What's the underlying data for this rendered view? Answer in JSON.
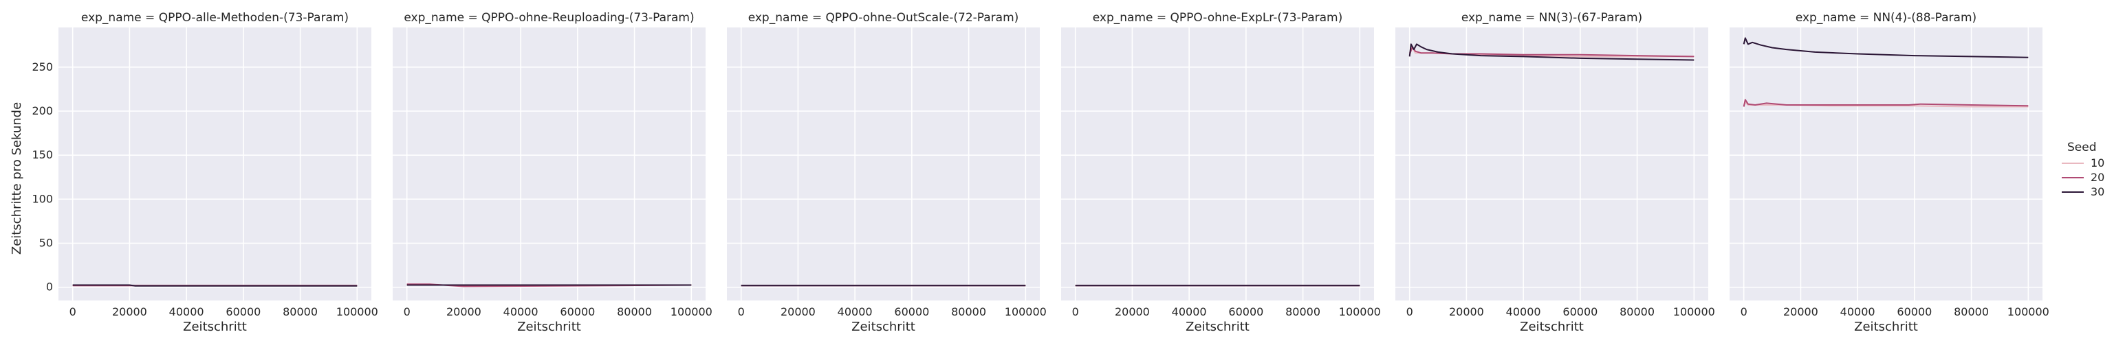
{
  "chart_data": {
    "type": "line",
    "facet_variable": "exp_name",
    "facet_label_format": "exp_name = {value}",
    "xlabel": "Zeitschritt",
    "ylabel": "Zeitschritte pro Sekunde",
    "xlim": [
      -5000,
      105000
    ],
    "ylim": [
      -15,
      295
    ],
    "xticks": [
      0,
      20000,
      40000,
      60000,
      80000,
      100000
    ],
    "yticks": [
      0,
      50,
      100,
      150,
      200,
      250
    ],
    "grid": true,
    "legend": {
      "title": "Seed",
      "placement": "right",
      "entries": [
        {
          "name": "10",
          "color": "#e9b8c0"
        },
        {
          "name": "20",
          "color": "#b04a73"
        },
        {
          "name": "30",
          "color": "#2b1636"
        }
      ]
    },
    "facets": [
      {
        "title": "QPPO-alle-Methoden-(73-Param)",
        "series": [
          {
            "name": "10",
            "x": [
              0,
              20000,
              100000
            ],
            "y": [
              2,
              2,
              2
            ]
          },
          {
            "name": "20",
            "x": [
              0,
              20000,
              100000
            ],
            "y": [
              2,
              2,
              2
            ]
          },
          {
            "name": "30",
            "x": [
              0,
              20000,
              22000,
              100000
            ],
            "y": [
              2.5,
              2.5,
              1.5,
              1.5
            ]
          }
        ]
      },
      {
        "title": "QPPO-ohne-Reuploading-(73-Param)",
        "series": [
          {
            "name": "10",
            "x": [
              0,
              100000
            ],
            "y": [
              2.5,
              2.5
            ]
          },
          {
            "name": "20",
            "x": [
              0,
              8000,
              20000,
              100000
            ],
            "y": [
              3.5,
              3.5,
              1,
              2.5
            ]
          },
          {
            "name": "30",
            "x": [
              0,
              100000
            ],
            "y": [
              2.5,
              2.5
            ]
          }
        ]
      },
      {
        "title": "QPPO-ohne-OutScale-(72-Param)",
        "series": [
          {
            "name": "10",
            "x": [
              0,
              100000
            ],
            "y": [
              2,
              2
            ]
          },
          {
            "name": "20",
            "x": [
              0,
              100000
            ],
            "y": [
              2,
              2
            ]
          },
          {
            "name": "30",
            "x": [
              0,
              100000
            ],
            "y": [
              2,
              2
            ]
          }
        ]
      },
      {
        "title": "QPPO-ohne-ExpLr-(73-Param)",
        "series": [
          {
            "name": "10",
            "x": [
              0,
              100000
            ],
            "y": [
              2,
              2
            ]
          },
          {
            "name": "20",
            "x": [
              0,
              100000
            ],
            "y": [
              2,
              2
            ]
          },
          {
            "name": "30",
            "x": [
              0,
              100000
            ],
            "y": [
              2,
              2
            ]
          }
        ]
      },
      {
        "title": "NN(3)-(67-Param)",
        "series": [
          {
            "name": "10",
            "x": [
              0,
              1000,
              2000,
              4000,
              8000,
              15000,
              25000,
              40000,
              60000,
              80000,
              100000
            ],
            "y": [
              266,
              272,
              266,
              266,
              266,
              265,
              264,
              263,
              262,
              262,
              262
            ]
          },
          {
            "name": "20",
            "x": [
              0,
              1000,
              2000,
              4000,
              8000,
              15000,
              25000,
              40000,
              60000,
              80000,
              100000
            ],
            "y": [
              264,
              273,
              268,
              266,
              266,
              265,
              265,
              264,
              264,
              263,
              262
            ]
          },
          {
            "name": "30",
            "x": [
              0,
              500,
              1500,
              2500,
              4000,
              6000,
              10000,
              15000,
              25000,
              40000,
              60000,
              80000,
              100000
            ],
            "y": [
              262,
              276,
              270,
              276,
              273,
              270,
              267,
              265,
              263,
              262,
              260,
              259,
              258
            ]
          }
        ]
      },
      {
        "title": "NN(4)-(88-Param)",
        "series": [
          {
            "name": "10",
            "x": [
              0,
              500,
              1500,
              4000,
              8000,
              15000,
              30000,
              60000,
              80000,
              100000
            ],
            "y": [
              206,
              210,
              207,
              207,
              207,
              207,
              206,
              206,
              205,
              205
            ]
          },
          {
            "name": "20",
            "x": [
              0,
              500,
              1500,
              4000,
              8000,
              15000,
              30000,
              58000,
              62000,
              80000,
              100000
            ],
            "y": [
              205,
              213,
              208,
              207,
              209,
              207,
              207,
              207,
              208,
              207,
              206
            ]
          },
          {
            "name": "30",
            "x": [
              0,
              500,
              1500,
              3000,
              6000,
              10000,
              15000,
              25000,
              40000,
              60000,
              80000,
              100000
            ],
            "y": [
              276,
              283,
              276,
              278,
              275,
              272,
              270,
              267,
              265,
              263,
              262,
              261
            ]
          }
        ]
      }
    ]
  }
}
